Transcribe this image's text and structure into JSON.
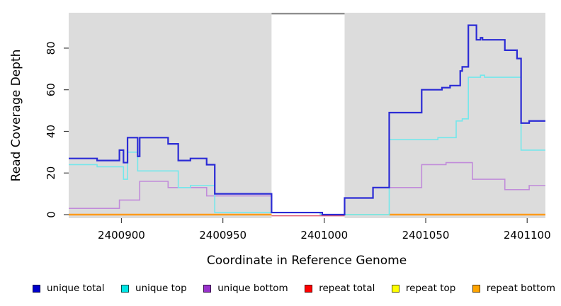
{
  "chart_data": {
    "type": "line",
    "subtype": "step-coverage-plot",
    "title": "",
    "xlabel": "Coordinate in Reference Genome",
    "ylabel": "Read Coverage Depth",
    "x_domain": [
      2400874,
      2401109
    ],
    "y_domain": [
      0,
      97
    ],
    "x_ticks": [
      2400900,
      2400950,
      2401000,
      2401050,
      2401100
    ],
    "y_ticks": [
      0,
      20,
      40,
      60,
      80
    ],
    "grid": false,
    "panel_bg": "#dcdcdc",
    "masked_region": {
      "x1": 2400974,
      "x2": 2401010,
      "color": "#ffffff",
      "top_border_color": "#8f8f8f"
    },
    "series": [
      {
        "name": "unique total",
        "id": "unique-total",
        "line_color": "#2b2bd5",
        "line_width": 2.2,
        "draw_order": 6,
        "segments": [
          {
            "end": 2401109,
            "steps": [
              [
                2400874,
                27
              ],
              [
                2400888,
                26
              ],
              [
                2400899,
                31
              ],
              [
                2400901,
                25
              ],
              [
                2400903,
                37
              ],
              [
                2400908,
                28
              ],
              [
                2400909,
                37
              ],
              [
                2400923,
                34
              ],
              [
                2400928,
                26
              ],
              [
                2400934,
                27
              ],
              [
                2400942,
                24
              ],
              [
                2400946,
                10
              ],
              [
                2400974,
                1
              ],
              [
                2400999,
                0
              ],
              [
                2401010,
                8
              ],
              [
                2401024,
                13
              ],
              [
                2401032,
                49
              ],
              [
                2401048,
                60
              ],
              [
                2401058,
                61
              ],
              [
                2401062,
                62
              ],
              [
                2401067,
                69
              ],
              [
                2401068,
                71
              ],
              [
                2401071,
                91
              ],
              [
                2401075,
                84
              ],
              [
                2401077,
                85
              ],
              [
                2401078,
                84
              ],
              [
                2401089,
                79
              ],
              [
                2401095,
                75
              ],
              [
                2401097,
                44
              ],
              [
                2401101,
                45
              ]
            ]
          }
        ]
      },
      {
        "name": "unique top",
        "id": "unique-top",
        "line_color": "#74e7eb",
        "line_width": 1.6,
        "draw_order": 5,
        "segments": [
          {
            "end": 2401109,
            "steps": [
              [
                2400874,
                24
              ],
              [
                2400888,
                23
              ],
              [
                2400901,
                17
              ],
              [
                2400903,
                30
              ],
              [
                2400908,
                21
              ],
              [
                2400928,
                13
              ],
              [
                2400934,
                14
              ],
              [
                2400946,
                1
              ],
              [
                2400998,
                0
              ],
              [
                2401032,
                36
              ],
              [
                2401056,
                37
              ],
              [
                2401065,
                45
              ],
              [
                2401068,
                46
              ],
              [
                2401071,
                66
              ],
              [
                2401077,
                67
              ],
              [
                2401079,
                66
              ],
              [
                2401097,
                31
              ]
            ]
          }
        ]
      },
      {
        "name": "unique bottom",
        "id": "unique-bottom",
        "line_color": "#c18cda",
        "line_width": 1.6,
        "draw_order": 4,
        "segments": [
          {
            "end": 2401109,
            "steps": [
              [
                2400874,
                3
              ],
              [
                2400899,
                7
              ],
              [
                2400909,
                16
              ],
              [
                2400923,
                13
              ],
              [
                2400942,
                9
              ],
              [
                2400974,
                1
              ],
              [
                2400998,
                0
              ],
              [
                2401010,
                8
              ],
              [
                2401024,
                13
              ],
              [
                2401048,
                24
              ],
              [
                2401060,
                25
              ],
              [
                2401073,
                17
              ],
              [
                2401089,
                12
              ],
              [
                2401101,
                14
              ]
            ]
          }
        ]
      },
      {
        "name": "repeat total",
        "id": "repeat-total",
        "line_color": "#e05c72",
        "line_width": 1.5,
        "draw_order": 3,
        "segments": [
          {
            "end": 2401010,
            "steps": [
              [
                2400974,
                0
              ]
            ]
          }
        ]
      },
      {
        "name": "repeat top",
        "id": "repeat-top",
        "line_color": "#ffff00",
        "line_width": 1.5,
        "draw_order": 2,
        "segments": []
      },
      {
        "name": "repeat bottom",
        "id": "repeat-bottom",
        "line_color": "#ff9a1a",
        "line_width": 2.4,
        "draw_order": 1,
        "segments": [
          {
            "end": 2400974,
            "steps": [
              [
                2400874,
                0
              ]
            ]
          },
          {
            "end": 2401109,
            "steps": [
              [
                2401032,
                0
              ]
            ]
          }
        ]
      }
    ],
    "artifacts": [
      {
        "id": "cyan-yellow-overlap",
        "description": "pale green segment where unique top and repeat top overlap at 0",
        "x1": 2401010,
        "x2": 2401032,
        "value": 0,
        "color": "#8fd694",
        "line_width": 1.6,
        "draw_order": 2.5
      }
    ],
    "legend": {
      "position": "bottom",
      "items": [
        {
          "label": "unique total",
          "color": "#0000cc"
        },
        {
          "label": "unique top",
          "color": "#00e5e5"
        },
        {
          "label": "unique bottom",
          "color": "#9932cc"
        },
        {
          "label": "repeat total",
          "color": "#ff0000"
        },
        {
          "label": "repeat top",
          "color": "#ffff00"
        },
        {
          "label": "repeat bottom",
          "color": "#ffa500"
        }
      ]
    }
  }
}
